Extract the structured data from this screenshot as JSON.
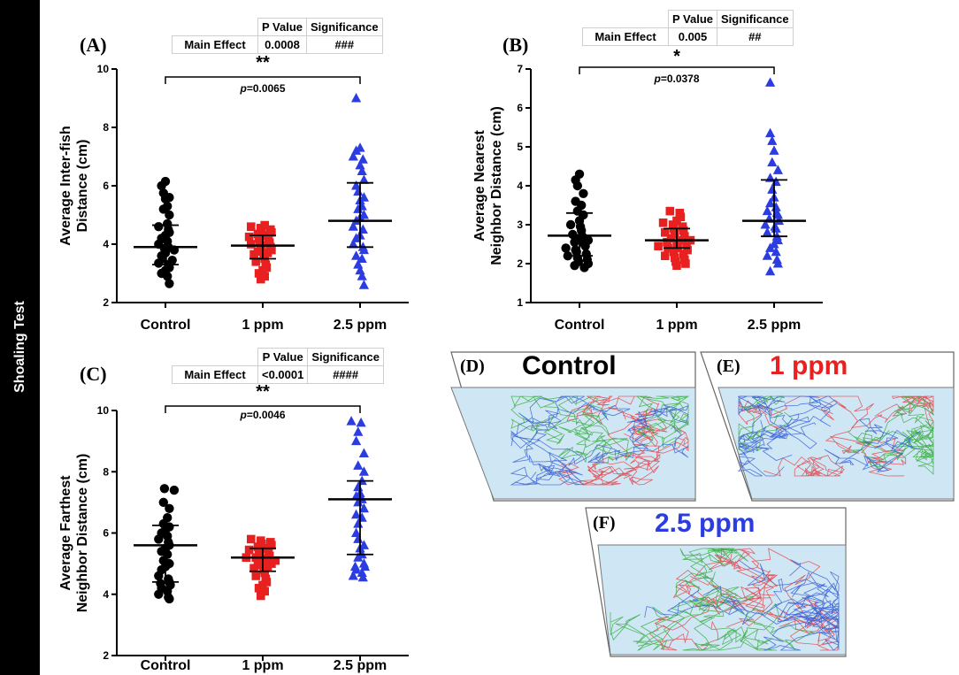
{
  "side_label": "Shoaling Test",
  "colors": {
    "control": "#000000",
    "ppm1": "#e8201f",
    "ppm25": "#2b3ce0",
    "arena": "#cfe7f4"
  },
  "stats_tables": [
    {
      "col1": "P Value",
      "col2": "Significance",
      "row_label": "Main Effect",
      "p": "0.0008",
      "sig": "###"
    },
    {
      "col1": "P Value",
      "col2": "Significance",
      "row_label": "Main Effect",
      "p": "0.005",
      "sig": "##"
    },
    {
      "col1": "P Value",
      "col2": "Significance",
      "row_label": "Main Effect",
      "p": "<0.0001",
      "sig": "####"
    }
  ],
  "chart_data": [
    {
      "type": "scatter",
      "panel": "(A)",
      "ylabel_line1": "Average Inter-fish",
      "ylabel_line2": "Distance (cm)",
      "categories": [
        "Control",
        "1 ppm",
        "2.5 ppm"
      ],
      "ylim": [
        2,
        10
      ],
      "yticks": [
        2,
        4,
        6,
        8,
        10
      ],
      "bracket": {
        "stars": "**",
        "p_label": "p",
        "p_value": "=0.0065"
      },
      "series": [
        {
          "name": "Control",
          "marker": "circle",
          "mean": 3.9,
          "sd_low": 3.3,
          "sd_high": 4.65,
          "values": [
            6.15,
            6.0,
            5.75,
            5.6,
            5.55,
            5.3,
            5.2,
            5.0,
            4.7,
            4.6,
            4.5,
            4.4,
            4.3,
            4.2,
            4.1,
            4.0,
            3.9,
            3.85,
            3.8,
            3.7,
            3.6,
            3.5,
            3.45,
            3.35,
            3.3,
            3.2,
            3.1,
            3.0,
            2.9,
            2.65
          ]
        },
        {
          "name": "1 ppm",
          "marker": "square",
          "mean": 3.95,
          "sd_low": 3.5,
          "sd_high": 4.3,
          "values": [
            4.65,
            4.6,
            4.55,
            4.5,
            4.45,
            4.4,
            4.35,
            4.3,
            4.25,
            4.2,
            4.15,
            4.1,
            4.05,
            4.0,
            3.95,
            3.9,
            3.85,
            3.8,
            3.75,
            3.7,
            3.65,
            3.6,
            3.5,
            3.4,
            3.3,
            3.2,
            3.1,
            3.0,
            2.9,
            2.8
          ]
        },
        {
          "name": "2.5 ppm",
          "marker": "triangle",
          "mean": 4.8,
          "sd_low": 3.9,
          "sd_high": 6.1,
          "values": [
            9.0,
            7.3,
            7.2,
            7.0,
            6.9,
            6.7,
            6.5,
            6.2,
            6.0,
            5.8,
            5.6,
            5.5,
            5.3,
            5.2,
            5.0,
            4.9,
            4.8,
            4.6,
            4.5,
            4.3,
            4.2,
            4.0,
            3.9,
            3.8,
            3.6,
            3.5,
            3.3,
            3.1,
            2.9,
            2.6
          ]
        }
      ]
    },
    {
      "type": "scatter",
      "panel": "(B)",
      "ylabel_line1": "Average Nearest",
      "ylabel_line2": "Neighbor Distance (cm)",
      "categories": [
        "Control",
        "1 ppm",
        "2.5 ppm"
      ],
      "ylim": [
        1,
        7
      ],
      "yticks": [
        1,
        2,
        3,
        4,
        5,
        6,
        7
      ],
      "bracket": {
        "stars": "*",
        "p_label": "p",
        "p_value": "=0.0378"
      },
      "series": [
        {
          "name": "Control",
          "marker": "circle",
          "mean": 2.72,
          "sd_low": 2.2,
          "sd_high": 3.3,
          "values": [
            4.3,
            4.15,
            4.0,
            3.8,
            3.6,
            3.5,
            3.35,
            3.25,
            3.1,
            3.0,
            2.95,
            2.85,
            2.75,
            2.7,
            2.65,
            2.6,
            2.55,
            2.5,
            2.4,
            2.35,
            2.3,
            2.25,
            2.2,
            2.15,
            2.1,
            2.05,
            2.0,
            1.95,
            1.9,
            2.45
          ]
        },
        {
          "name": "1 ppm",
          "marker": "square",
          "mean": 2.6,
          "sd_low": 2.4,
          "sd_high": 2.9,
          "values": [
            3.35,
            3.3,
            3.2,
            3.1,
            3.05,
            3.0,
            2.95,
            2.9,
            2.85,
            2.8,
            2.75,
            2.7,
            2.65,
            2.6,
            2.6,
            2.55,
            2.5,
            2.5,
            2.45,
            2.4,
            2.4,
            2.35,
            2.3,
            2.25,
            2.2,
            2.15,
            2.1,
            2.05,
            2.0,
            1.95
          ]
        },
        {
          "name": "2.5 ppm",
          "marker": "triangle",
          "mean": 3.1,
          "sd_low": 2.7,
          "sd_high": 4.15,
          "values": [
            6.65,
            5.35,
            5.15,
            4.9,
            4.6,
            4.4,
            4.2,
            4.1,
            3.9,
            3.7,
            3.55,
            3.35,
            3.25,
            3.15,
            3.1,
            3.0,
            2.9,
            2.8,
            2.7,
            2.6,
            2.5,
            2.4,
            2.3,
            2.2,
            2.1,
            2.0,
            1.8,
            3.45,
            3.3,
            2.95
          ]
        }
      ]
    },
    {
      "type": "scatter",
      "panel": "(C)",
      "ylabel_line1": "Average Farthest",
      "ylabel_line2": "Neighbor Distance (cm)",
      "categories": [
        "Control",
        "1 ppm",
        "2.5 ppm"
      ],
      "ylim": [
        2,
        10
      ],
      "yticks": [
        2,
        4,
        6,
        8,
        10
      ],
      "bracket": {
        "stars": "**",
        "p_label": "p",
        "p_value": "=0.0046"
      },
      "series": [
        {
          "name": "Control",
          "marker": "circle",
          "mean": 5.6,
          "sd_low": 4.4,
          "sd_high": 6.25,
          "values": [
            7.45,
            7.4,
            7.0,
            6.8,
            6.5,
            6.3,
            6.2,
            6.1,
            6.0,
            5.9,
            5.8,
            5.7,
            5.6,
            5.5,
            5.4,
            5.3,
            5.1,
            5.0,
            4.9,
            4.8,
            4.6,
            4.5,
            4.4,
            4.35,
            4.3,
            4.2,
            4.1,
            4.0,
            3.9,
            3.85
          ]
        },
        {
          "name": "1 ppm",
          "marker": "square",
          "mean": 5.2,
          "sd_low": 4.75,
          "sd_high": 5.5,
          "values": [
            5.8,
            5.75,
            5.7,
            5.65,
            5.6,
            5.55,
            5.5,
            5.45,
            5.4,
            5.35,
            5.3,
            5.25,
            5.2,
            5.2,
            5.15,
            5.1,
            5.05,
            5.0,
            4.95,
            4.9,
            4.85,
            4.8,
            4.7,
            4.6,
            4.5,
            4.4,
            4.3,
            4.2,
            4.1,
            3.95
          ]
        },
        {
          "name": "2.5 ppm",
          "marker": "triangle",
          "mean": 7.1,
          "sd_low": 5.3,
          "sd_high": 7.7,
          "values": [
            9.65,
            9.6,
            9.3,
            9.0,
            8.6,
            8.2,
            7.7,
            7.5,
            7.3,
            7.2,
            7.1,
            7.0,
            6.8,
            6.6,
            6.3,
            6.0,
            5.8,
            5.6,
            5.3,
            5.2,
            5.0,
            4.9,
            4.8,
            4.7,
            4.6,
            4.55,
            8.0,
            6.5,
            5.5,
            4.9
          ]
        }
      ]
    }
  ],
  "track_panels": [
    {
      "letter": "(D)",
      "title": "Control",
      "title_color": "#000000"
    },
    {
      "letter": "(E)",
      "title": "1 ppm",
      "title_color": "#e8201f"
    },
    {
      "letter": "(F)",
      "title": "2.5 ppm",
      "title_color": "#2b3ce0"
    }
  ]
}
